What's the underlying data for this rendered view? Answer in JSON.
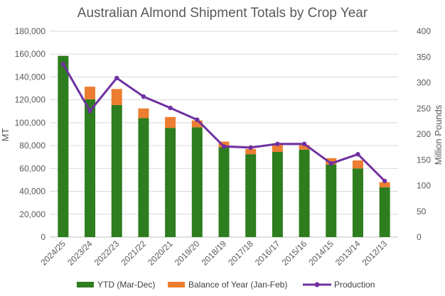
{
  "chart_data": {
    "type": "bar",
    "title": "Australian Almond Shipment Totals by Crop Year",
    "ylabel": "MT",
    "y2label": "Million Pounds",
    "ylim": [
      0,
      180000
    ],
    "y2lim": [
      0,
      400
    ],
    "yticks": [
      "0",
      "20,000",
      "40,000",
      "60,000",
      "80,000",
      "100,000",
      "120,000",
      "140,000",
      "160,000",
      "180,000"
    ],
    "y2ticks": [
      "0",
      "50",
      "100",
      "150",
      "200",
      "250",
      "300",
      "350",
      "400"
    ],
    "categories": [
      "2024/25",
      "2023/24",
      "2022/23",
      "2021/22",
      "2020/21",
      "2019/20",
      "2018/19",
      "2017/18",
      "2016/17",
      "2015/16",
      "2014/15",
      "2013/14",
      "2012/13"
    ],
    "stacked": true,
    "series": [
      {
        "name": "YTD (Mar-Dec)",
        "axis": "left",
        "color": "#2e7d1e",
        "values": [
          158500,
          120500,
          115500,
          104000,
          95500,
          96000,
          78500,
          72500,
          74500,
          76500,
          63500,
          60000,
          43500
        ]
      },
      {
        "name": "Balance of Year (Jan-Feb)",
        "axis": "left",
        "color": "#ed7d31",
        "values": [
          0,
          11000,
          14000,
          8500,
          9500,
          6000,
          5000,
          4500,
          7500,
          4000,
          5500,
          7000,
          4500
        ]
      },
      {
        "name": "Production",
        "axis": "right",
        "type": "line",
        "color": "#7030a0",
        "values": [
          336,
          245,
          309,
          273,
          251,
          228,
          176,
          174,
          181,
          181,
          143,
          161,
          109
        ]
      }
    ],
    "grid": true,
    "legend": "bottom"
  }
}
